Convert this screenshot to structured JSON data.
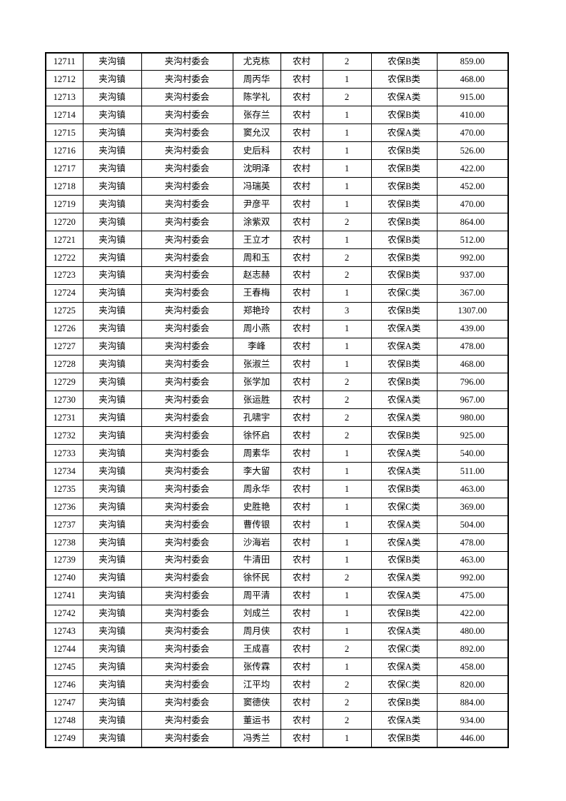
{
  "page": {
    "background_color": "#ffffff",
    "text_color": "#000000",
    "description_note": ""
  },
  "table": {
    "column_names": [
      "id",
      "town",
      "village",
      "name",
      "residence",
      "count",
      "category",
      "amount"
    ],
    "rows": [
      [
        "12711",
        "夹沟镇",
        "夹沟村委会",
        "尤克栋",
        "农村",
        "2",
        "农保B类",
        "859.00"
      ],
      [
        "12712",
        "夹沟镇",
        "夹沟村委会",
        "周丙华",
        "农村",
        "1",
        "农保B类",
        "468.00"
      ],
      [
        "12713",
        "夹沟镇",
        "夹沟村委会",
        "陈学礼",
        "农村",
        "2",
        "农保A类",
        "915.00"
      ],
      [
        "12714",
        "夹沟镇",
        "夹沟村委会",
        "张存兰",
        "农村",
        "1",
        "农保B类",
        "410.00"
      ],
      [
        "12715",
        "夹沟镇",
        "夹沟村委会",
        "窦允汉",
        "农村",
        "1",
        "农保A类",
        "470.00"
      ],
      [
        "12716",
        "夹沟镇",
        "夹沟村委会",
        "史后科",
        "农村",
        "1",
        "农保B类",
        "526.00"
      ],
      [
        "12717",
        "夹沟镇",
        "夹沟村委会",
        "沈明泽",
        "农村",
        "1",
        "农保B类",
        "422.00"
      ],
      [
        "12718",
        "夹沟镇",
        "夹沟村委会",
        "冯瑞英",
        "农村",
        "1",
        "农保B类",
        "452.00"
      ],
      [
        "12719",
        "夹沟镇",
        "夹沟村委会",
        "尹彦平",
        "农村",
        "1",
        "农保B类",
        "470.00"
      ],
      [
        "12720",
        "夹沟镇",
        "夹沟村委会",
        "涂紫双",
        "农村",
        "2",
        "农保B类",
        "864.00"
      ],
      [
        "12721",
        "夹沟镇",
        "夹沟村委会",
        "王立才",
        "农村",
        "1",
        "农保B类",
        "512.00"
      ],
      [
        "12722",
        "夹沟镇",
        "夹沟村委会",
        "周和玉",
        "农村",
        "2",
        "农保B类",
        "992.00"
      ],
      [
        "12723",
        "夹沟镇",
        "夹沟村委会",
        "赵志赫",
        "农村",
        "2",
        "农保B类",
        "937.00"
      ],
      [
        "12724",
        "夹沟镇",
        "夹沟村委会",
        "王春梅",
        "农村",
        "1",
        "农保C类",
        "367.00"
      ],
      [
        "12725",
        "夹沟镇",
        "夹沟村委会",
        "郑艳玲",
        "农村",
        "3",
        "农保B类",
        "1307.00"
      ],
      [
        "12726",
        "夹沟镇",
        "夹沟村委会",
        "周小燕",
        "农村",
        "1",
        "农保A类",
        "439.00"
      ],
      [
        "12727",
        "夹沟镇",
        "夹沟村委会",
        "李峰",
        "农村",
        "1",
        "农保A类",
        "478.00"
      ],
      [
        "12728",
        "夹沟镇",
        "夹沟村委会",
        "张淑兰",
        "农村",
        "1",
        "农保B类",
        "468.00"
      ],
      [
        "12729",
        "夹沟镇",
        "夹沟村委会",
        "张学加",
        "农村",
        "2",
        "农保B类",
        "796.00"
      ],
      [
        "12730",
        "夹沟镇",
        "夹沟村委会",
        "张运胜",
        "农村",
        "2",
        "农保A类",
        "967.00"
      ],
      [
        "12731",
        "夹沟镇",
        "夹沟村委会",
        "孔啸宇",
        "农村",
        "2",
        "农保A类",
        "980.00"
      ],
      [
        "12732",
        "夹沟镇",
        "夹沟村委会",
        "徐怀启",
        "农村",
        "2",
        "农保B类",
        "925.00"
      ],
      [
        "12733",
        "夹沟镇",
        "夹沟村委会",
        "周素华",
        "农村",
        "1",
        "农保A类",
        "540.00"
      ],
      [
        "12734",
        "夹沟镇",
        "夹沟村委会",
        "李大留",
        "农村",
        "1",
        "农保A类",
        "511.00"
      ],
      [
        "12735",
        "夹沟镇",
        "夹沟村委会",
        "周永华",
        "农村",
        "1",
        "农保B类",
        "463.00"
      ],
      [
        "12736",
        "夹沟镇",
        "夹沟村委会",
        "史胜艳",
        "农村",
        "1",
        "农保C类",
        "369.00"
      ],
      [
        "12737",
        "夹沟镇",
        "夹沟村委会",
        "曹传银",
        "农村",
        "1",
        "农保A类",
        "504.00"
      ],
      [
        "12738",
        "夹沟镇",
        "夹沟村委会",
        "沙海岩",
        "农村",
        "1",
        "农保A类",
        "478.00"
      ],
      [
        "12739",
        "夹沟镇",
        "夹沟村委会",
        "牛清田",
        "农村",
        "1",
        "农保B类",
        "463.00"
      ],
      [
        "12740",
        "夹沟镇",
        "夹沟村委会",
        "徐怀民",
        "农村",
        "2",
        "农保A类",
        "992.00"
      ],
      [
        "12741",
        "夹沟镇",
        "夹沟村委会",
        "周平清",
        "农村",
        "1",
        "农保A类",
        "475.00"
      ],
      [
        "12742",
        "夹沟镇",
        "夹沟村委会",
        "刘成兰",
        "农村",
        "1",
        "农保B类",
        "422.00"
      ],
      [
        "12743",
        "夹沟镇",
        "夹沟村委会",
        "周月侠",
        "农村",
        "1",
        "农保A类",
        "480.00"
      ],
      [
        "12744",
        "夹沟镇",
        "夹沟村委会",
        "王成喜",
        "农村",
        "2",
        "农保C类",
        "892.00"
      ],
      [
        "12745",
        "夹沟镇",
        "夹沟村委会",
        "张传霖",
        "农村",
        "1",
        "农保A类",
        "458.00"
      ],
      [
        "12746",
        "夹沟镇",
        "夹沟村委会",
        "江平均",
        "农村",
        "2",
        "农保C类",
        "820.00"
      ],
      [
        "12747",
        "夹沟镇",
        "夹沟村委会",
        "窦德侠",
        "农村",
        "2",
        "农保B类",
        "884.00"
      ],
      [
        "12748",
        "夹沟镇",
        "夹沟村委会",
        "董运书",
        "农村",
        "2",
        "农保A类",
        "934.00"
      ],
      [
        "12749",
        "夹沟镇",
        "夹沟村委会",
        "冯秀兰",
        "农村",
        "1",
        "农保B类",
        "446.00"
      ]
    ]
  }
}
